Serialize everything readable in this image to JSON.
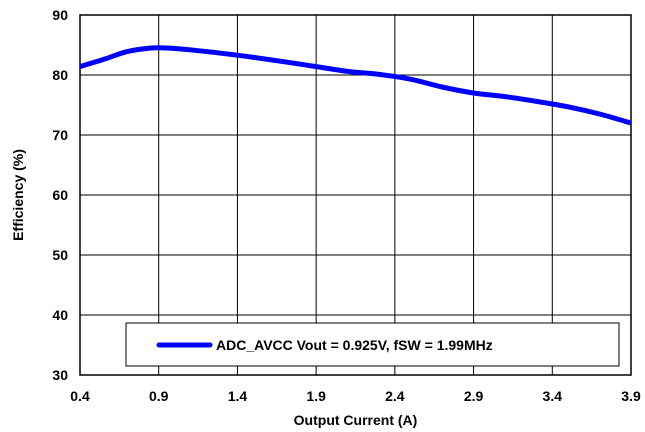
{
  "chart_data": {
    "type": "line",
    "title": "",
    "xlabel": "Output Current (A)",
    "ylabel": "Efficiency (%)",
    "xlim": [
      0.4,
      3.9
    ],
    "ylim": [
      30,
      90
    ],
    "xticks": [
      0.4,
      0.9,
      1.4,
      1.9,
      2.4,
      2.9,
      3.4,
      3.9
    ],
    "xtick_labels": [
      "0.4",
      "0.9",
      "1.4",
      "1.9",
      "2.4",
      "2.9",
      "3.4",
      "3.9"
    ],
    "yticks": [
      30,
      40,
      50,
      60,
      70,
      80,
      90
    ],
    "ytick_labels": [
      "30",
      "40",
      "50",
      "60",
      "70",
      "80",
      "90"
    ],
    "grid": true,
    "legend_position": "bottom-center",
    "series": [
      {
        "name": "ADC_AVCC Vout = 0.925V, fSW = 1.99MHz",
        "color": "#0000ff",
        "x": [
          0.4,
          0.55,
          0.7,
          0.85,
          0.95,
          1.1,
          1.4,
          1.7,
          1.9,
          2.1,
          2.3,
          2.5,
          2.7,
          2.9,
          3.1,
          3.3,
          3.5,
          3.7,
          3.9
        ],
        "y": [
          81.4,
          82.6,
          83.9,
          84.5,
          84.5,
          84.2,
          83.3,
          82.2,
          81.4,
          80.6,
          80.1,
          79.3,
          78.0,
          77.0,
          76.4,
          75.6,
          74.7,
          73.5,
          72.0
        ]
      }
    ]
  }
}
